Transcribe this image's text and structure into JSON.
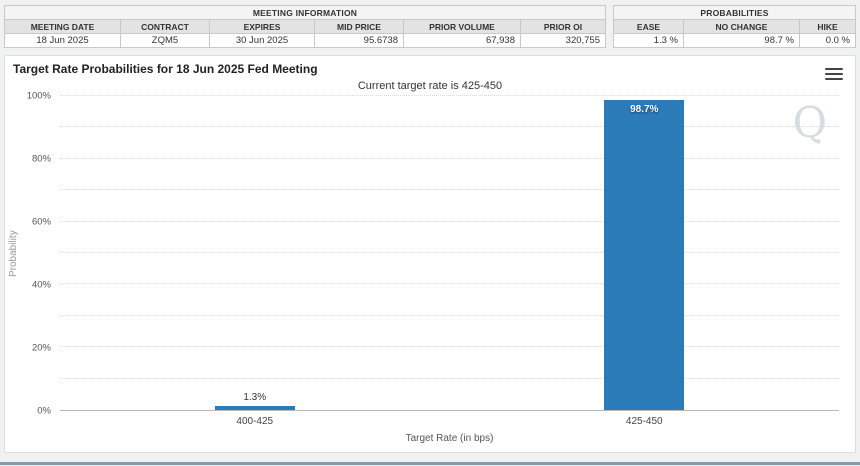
{
  "meeting_info": {
    "title": "MEETING INFORMATION",
    "columns": [
      "MEETING DATE",
      "CONTRACT",
      "EXPIRES",
      "MID PRICE",
      "PRIOR VOLUME",
      "PRIOR OI"
    ],
    "values": [
      "18 Jun 2025",
      "ZQM5",
      "30 Jun 2025",
      "95.6738",
      "67,938",
      "320,755"
    ]
  },
  "probabilities": {
    "title": "PROBABILITIES",
    "columns": [
      "EASE",
      "NO CHANGE",
      "HIKE"
    ],
    "values": [
      "1.3 %",
      "98.7 %",
      "0.0 %"
    ]
  },
  "chart_data": {
    "type": "bar",
    "title": "Target Rate Probabilities for 18 Jun 2025 Fed Meeting",
    "subtitle": "Current target rate is 425-450",
    "categories": [
      "400-425",
      "425-450"
    ],
    "values": [
      1.3,
      98.7
    ],
    "labels": [
      "1.3%",
      "98.7%"
    ],
    "xlabel": "Target Rate (in bps)",
    "ylabel": "Probability",
    "ylim": [
      0,
      100
    ],
    "yticks": [
      "0%",
      "20%",
      "40%",
      "60%",
      "80%",
      "100%"
    ],
    "grid": "dotted horizontal, minor every 10%",
    "legend": "none",
    "bar_color": "#2b7bb9"
  },
  "icons": {
    "menu": "hamburger-icon",
    "watermark": "Q"
  }
}
